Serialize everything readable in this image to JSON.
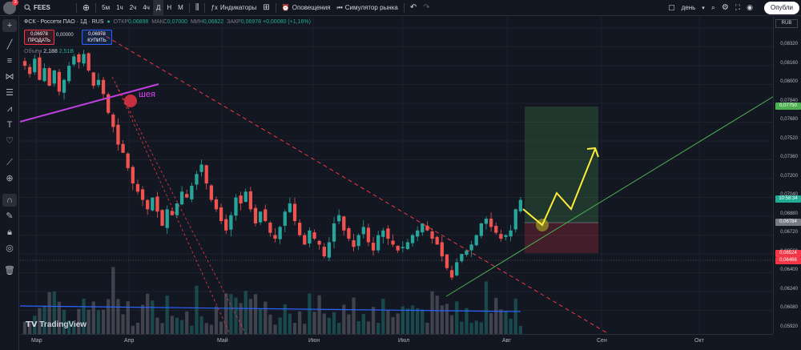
{
  "topbar": {
    "avatar_badge": "3",
    "symbol": "FEES",
    "timeframes": [
      "5м",
      "1ч",
      "2ч",
      "4ч",
      "Д",
      "Н",
      "М"
    ],
    "active_timeframe": "Д",
    "indicators_label": "Индикаторы",
    "alerts_label": "Оповещения",
    "replay_label": "Симулятор рынка",
    "layout_label": "день",
    "publish_label": "Опубли"
  },
  "legend": {
    "title": "ФСК - Россети ПАО · 1Д · RUS",
    "open_lbl": "ОТКР",
    "open_val": "0,06898",
    "high_lbl": "МАКС",
    "high_val": "0,07000",
    "low_lbl": "МИН",
    "low_val": "0,06822",
    "close_lbl": "ЗАКР",
    "close_val": "0,06978 +0,00080 (+1,16%)",
    "sell_price": "0,06978",
    "sell_label": "ПРОДАТЬ",
    "spread": "0,00000",
    "buy_price": "0,06978",
    "buy_label": "КУПИТЬ",
    "volume_label": "Объём",
    "volume_val1": "2,188",
    "volume_val2": "2,51B"
  },
  "drawing": {
    "neck_label": "шея"
  },
  "price_axis": {
    "currency": "RUB",
    "labels": [
      "0,08320",
      "0,08160",
      "0,08000",
      "0,07840",
      "0,07680",
      "0,07520",
      "0,07360",
      "0,07200",
      "0,07040",
      "0,06880",
      "0,06720",
      "0,06560",
      "0,06400",
      "0,06240",
      "0,06080",
      "0,05920"
    ],
    "tags": [
      {
        "text": "0,07750",
        "color": "#4caf50"
      },
      {
        "text": "10:58:34",
        "color": "#22ab94"
      },
      {
        "text": "0,06784",
        "color": "#787b86"
      },
      {
        "text": "0,06524",
        "color": "#f23645"
      },
      {
        "text": "0,06466",
        "color": "#f23645"
      }
    ]
  },
  "time_axis": {
    "labels": [
      "Мар",
      "Апр",
      "Май",
      "Июн",
      "Июл",
      "Авг",
      "Сен",
      "Окт"
    ]
  },
  "branding": {
    "logo_text": "TradingView"
  },
  "chart_data": {
    "type": "candlestick",
    "symbol": "FEES",
    "interval": "1D",
    "ylim": [
      0.0584,
      0.084
    ],
    "closes": [
      0.0812,
      0.0805,
      0.0818,
      0.08,
      0.081,
      0.0795,
      0.0808,
      0.079,
      0.08,
      0.0812,
      0.082,
      0.0815,
      0.0822,
      0.0808,
      0.0795,
      0.08,
      0.0788,
      0.0772,
      0.076,
      0.0745,
      0.0738,
      0.0725,
      0.0712,
      0.0705,
      0.0698,
      0.069,
      0.07,
      0.0688,
      0.0676,
      0.069,
      0.0685,
      0.0695,
      0.0705,
      0.07,
      0.071,
      0.072,
      0.0728,
      0.0712,
      0.0698,
      0.069,
      0.068,
      0.0672,
      0.0685,
      0.07,
      0.0695,
      0.0705,
      0.069,
      0.0678,
      0.0688,
      0.068,
      0.067,
      0.0665,
      0.0675,
      0.0688,
      0.0695,
      0.068,
      0.0668,
      0.066,
      0.0672,
      0.0665,
      0.066,
      0.065,
      0.0662,
      0.0678,
      0.0685,
      0.0672,
      0.0665,
      0.0658,
      0.0668,
      0.0675,
      0.0662,
      0.0655,
      0.0668,
      0.0672,
      0.0665,
      0.066,
      0.0655,
      0.0658,
      0.0662,
      0.0668,
      0.0672,
      0.0678,
      0.0672,
      0.0665,
      0.066,
      0.065,
      0.064,
      0.0632,
      0.0645,
      0.0652,
      0.0655,
      0.066,
      0.0668,
      0.0678,
      0.0682,
      0.0675,
      0.067,
      0.0665,
      0.0668,
      0.0672,
      0.069,
      0.0698
    ],
    "position": {
      "target": 0.0775,
      "entry": 0.06784,
      "stop": 0.06524
    }
  }
}
